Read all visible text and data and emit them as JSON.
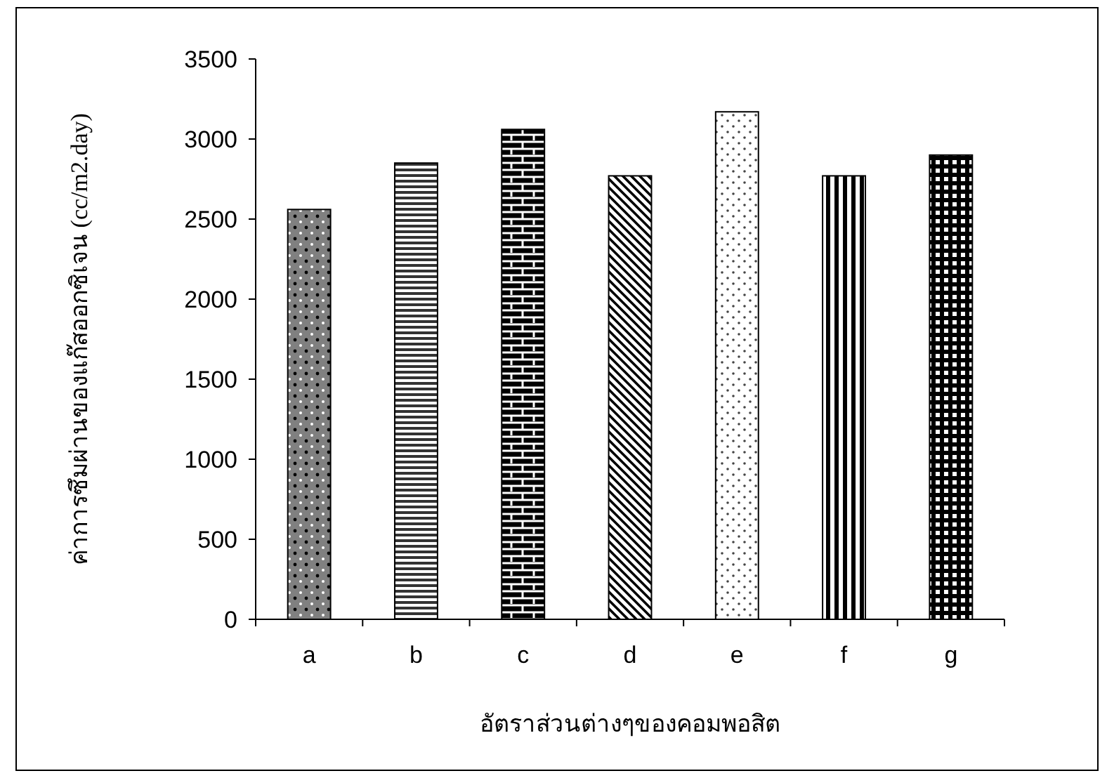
{
  "chart_data": {
    "type": "bar",
    "xlabel": "อัตราส่วนต่างๆของคอมพอสิต",
    "ylabel": "ค่าการซึมผ่านของแก๊สออกซิเจน (cc/m2.day)",
    "categories": [
      "a",
      "b",
      "c",
      "d",
      "e",
      "f",
      "g"
    ],
    "values": [
      2560,
      2850,
      3060,
      2770,
      3170,
      2770,
      2900
    ],
    "ylim": [
      0,
      3500
    ],
    "yticks": [
      0,
      500,
      1000,
      1500,
      2000,
      2500,
      3000,
      3500
    ],
    "grid": false
  }
}
